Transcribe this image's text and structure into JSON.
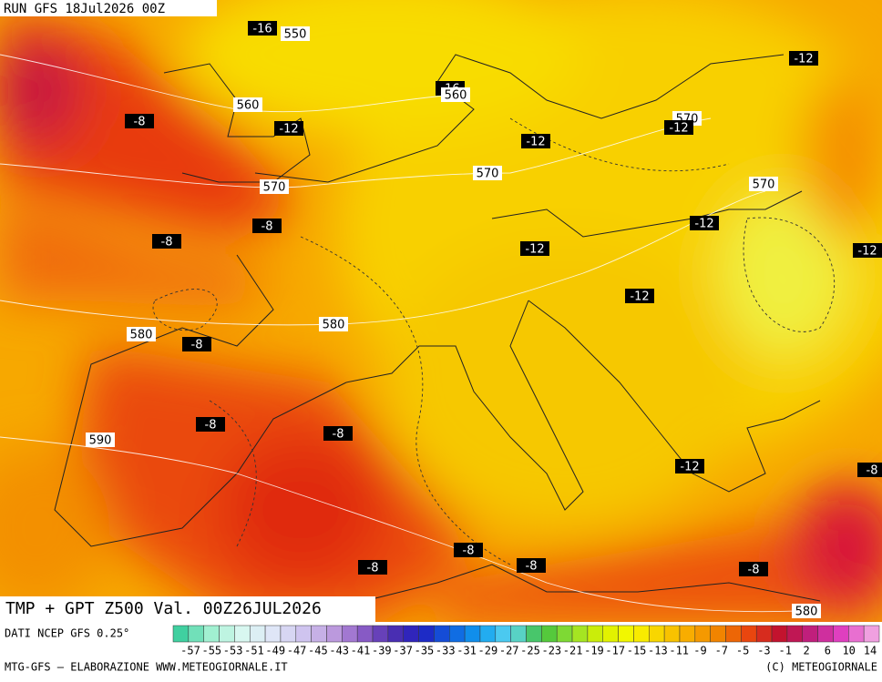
{
  "header": {
    "run": "RUN GFS 18Jul2026 00Z"
  },
  "map": {
    "labels": [
      "-16",
      "550",
      "-8",
      "560",
      "-12",
      "-16",
      "560",
      "570",
      "-12",
      "-12",
      "-12",
      "570",
      "570",
      "-8",
      "-8",
      "-12",
      "570",
      "-12",
      "-12",
      "-12",
      "580",
      "580",
      "-8",
      "-8",
      "-8",
      "590",
      "-12",
      "-8",
      "-8",
      "-8",
      "-8",
      "-8",
      "580"
    ]
  },
  "footer": {
    "title": "TMP + GPT Z500 Val. 00Z26JUL2026",
    "source": "DATI NCEP GFS 0.25°",
    "credit": "MTG-GFS — ELABORAZIONE WWW.METEOGIORNALE.IT",
    "copyright": "(C) METEOGIORNALE"
  },
  "legend": {
    "labels": [
      -57,
      -55,
      -53,
      -51,
      -49,
      -47,
      -45,
      -43,
      -41,
      -39,
      -37,
      -35,
      -33,
      -31,
      -29,
      -27,
      -25,
      -23,
      -21,
      -19,
      -17,
      -15,
      -13,
      -11,
      -9,
      -7,
      -5,
      -3,
      -1,
      2,
      6,
      10,
      14
    ]
  }
}
